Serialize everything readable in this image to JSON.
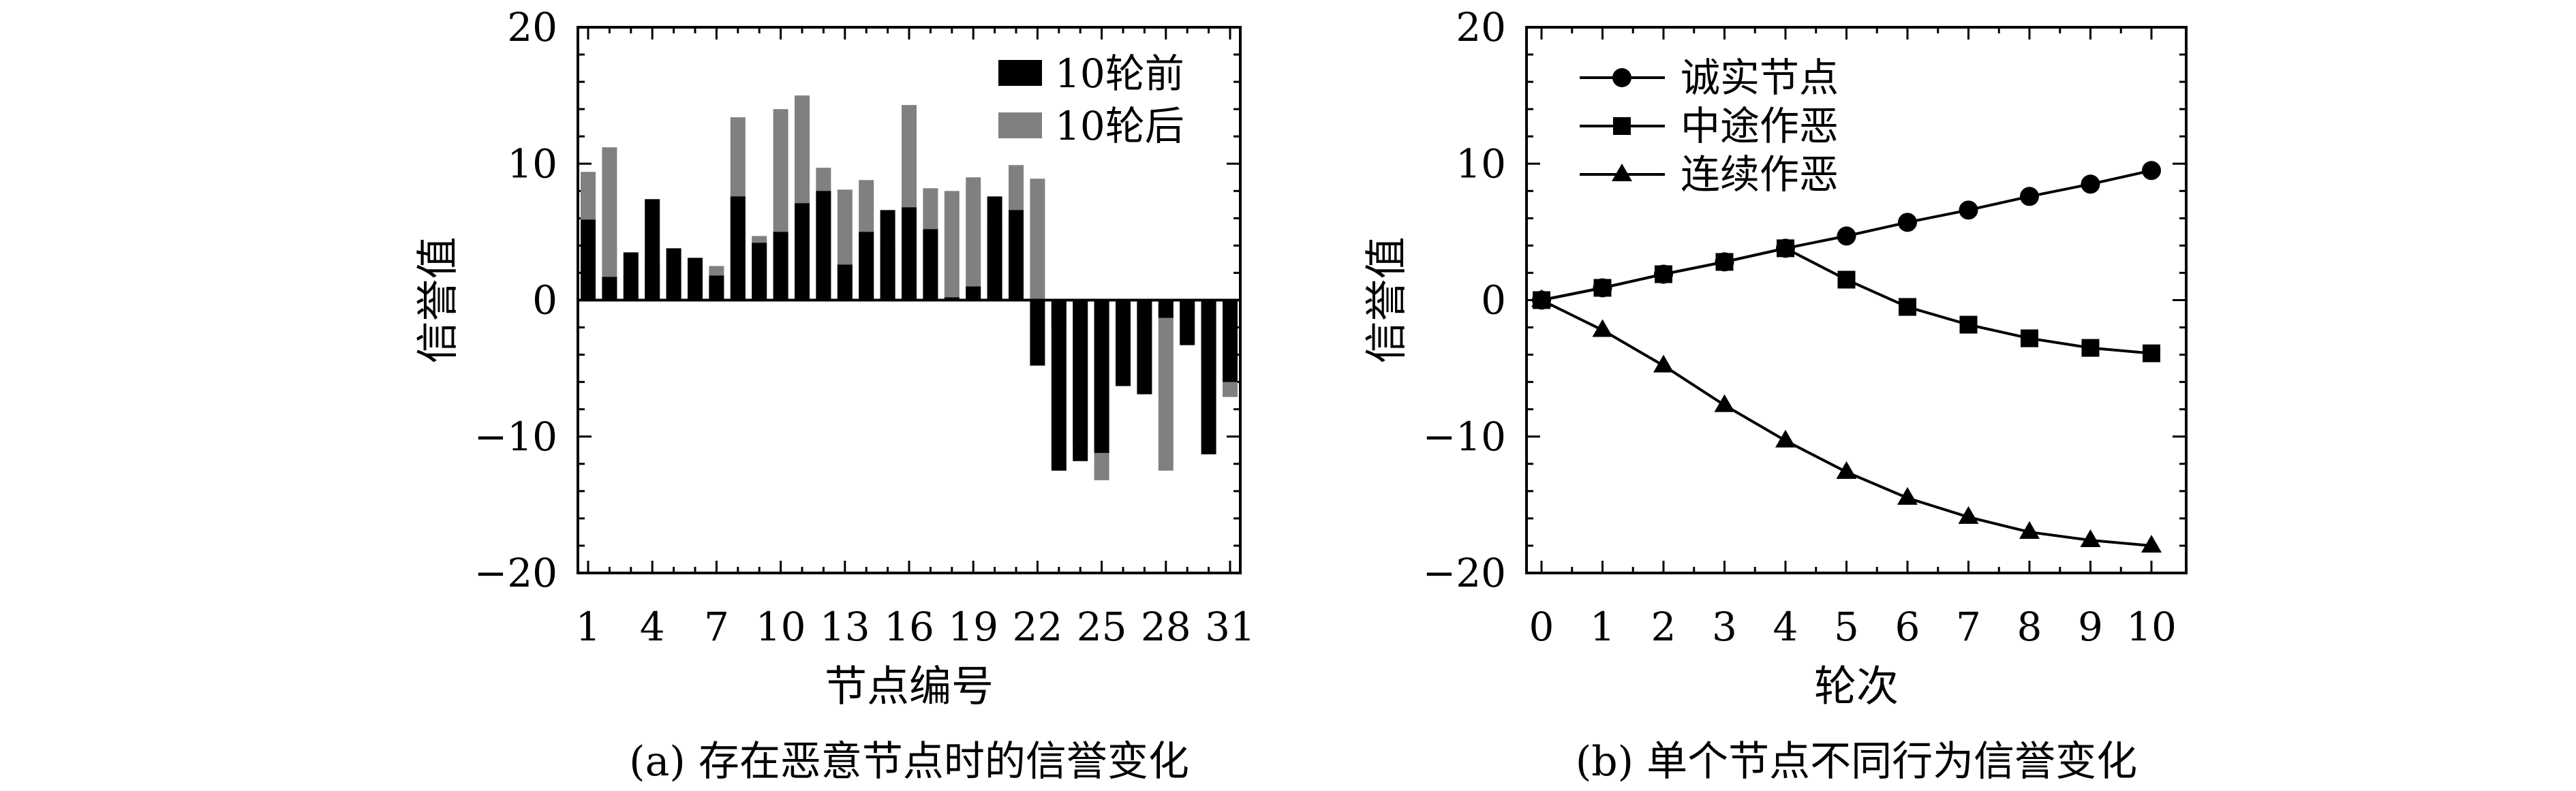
{
  "chart_data": [
    {
      "type": "bar",
      "stacked": true,
      "ylabel": "信誉值",
      "xlabel": "节点编号",
      "caption": "(a) 存在恶意节点时的信誉变化",
      "ylim": [
        -20,
        20
      ],
      "yticks": [
        "20",
        "10",
        "0",
        "−10",
        "−20"
      ],
      "ytick_values": [
        20,
        10,
        0,
        -10,
        -20
      ],
      "xtick_labels": [
        "1",
        "4",
        "7",
        "10",
        "13",
        "16",
        "19",
        "22",
        "25",
        "28",
        "31"
      ],
      "xtick_values": [
        1,
        4,
        7,
        10,
        13,
        16,
        19,
        22,
        25,
        28,
        31
      ],
      "legend_position": "top-right",
      "colors": {
        "before": "#000000",
        "after": "#808080"
      },
      "series": [
        {
          "name": "10轮前",
          "values": [
            5.9,
            1.7,
            3.5,
            7.4,
            3.8,
            3.1,
            1.8,
            7.6,
            4.2,
            5.0,
            7.1,
            8.0,
            2.6,
            5.0,
            6.6,
            6.8,
            5.2,
            0.2,
            1.0,
            7.6,
            6.6,
            -4.8,
            -12.5,
            -11.8,
            -11.2,
            -6.3,
            -6.9,
            -1.3,
            -3.3,
            -11.3,
            -6.0
          ]
        },
        {
          "name": "10轮后",
          "values": [
            9.4,
            11.2,
            1.8,
            3.0,
            1.5,
            0.5,
            2.5,
            13.4,
            4.7,
            14.0,
            15.0,
            9.7,
            8.1,
            8.8,
            4.1,
            14.3,
            8.2,
            8.0,
            9.0,
            5.8,
            9.9,
            8.9,
            -2.0,
            -10.5,
            -13.2,
            -5.9,
            -1.6,
            -12.5,
            -1.2,
            -4.5,
            -7.1
          ]
        }
      ]
    },
    {
      "type": "line",
      "ylabel": "信誉值",
      "xlabel": "轮次",
      "caption": "(b) 单个节点不同行为信誉变化",
      "ylim": [
        -20,
        20
      ],
      "xlim": [
        0,
        10
      ],
      "yticks": [
        "20",
        "10",
        "0",
        "−10",
        "−20"
      ],
      "ytick_values": [
        20,
        10,
        0,
        -10,
        -20
      ],
      "xtick_labels": [
        "0",
        "1",
        "2",
        "3",
        "4",
        "5",
        "6",
        "7",
        "8",
        "9",
        "10"
      ],
      "xtick_values": [
        0,
        1,
        2,
        3,
        4,
        5,
        6,
        7,
        8,
        9,
        10
      ],
      "legend_position": "top-left",
      "x": [
        0,
        1,
        2,
        3,
        4,
        5,
        6,
        7,
        8,
        9,
        10
      ],
      "series": [
        {
          "name": "诚实节点",
          "marker": "circle",
          "values": [
            0,
            0.9,
            1.9,
            2.8,
            3.8,
            4.7,
            5.7,
            6.6,
            7.6,
            8.5,
            9.5
          ]
        },
        {
          "name": "中途作恶",
          "marker": "square",
          "values": [
            0,
            0.9,
            1.9,
            2.8,
            3.8,
            1.5,
            -0.5,
            -1.8,
            -2.8,
            -3.5,
            -3.9
          ]
        },
        {
          "name": "连续作恶",
          "marker": "triangle",
          "values": [
            0,
            -2.2,
            -4.8,
            -7.7,
            -10.3,
            -12.6,
            -14.5,
            -15.9,
            -17.0,
            -17.6,
            -18.0
          ]
        }
      ]
    }
  ]
}
